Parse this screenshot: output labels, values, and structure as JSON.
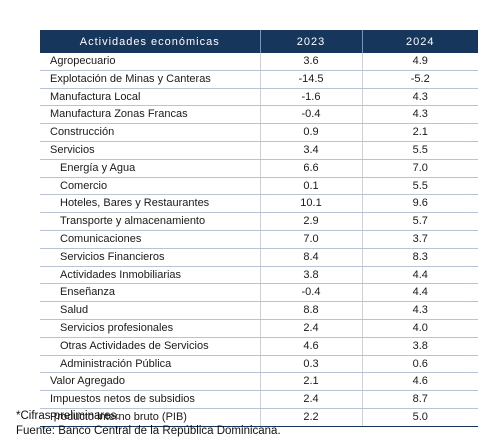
{
  "table": {
    "headers": [
      "Actividades económicas",
      "2023",
      "2024"
    ],
    "rows": [
      {
        "label": "Agropecuario",
        "y2023": "3.6",
        "y2024": "4.9",
        "sub": false
      },
      {
        "label": "Explotación de Minas y Canteras",
        "y2023": "-14.5",
        "y2024": "-5.2",
        "sub": false
      },
      {
        "label": "Manufactura Local",
        "y2023": "-1.6",
        "y2024": "4.3",
        "sub": false
      },
      {
        "label": "Manufactura Zonas Francas",
        "y2023": "-0.4",
        "y2024": "4.3",
        "sub": false
      },
      {
        "label": "Construcción",
        "y2023": "0.9",
        "y2024": "2.1",
        "sub": false
      },
      {
        "label": "Servicios",
        "y2023": "3.4",
        "y2024": "5.5",
        "sub": false
      },
      {
        "label": "Energía y Agua",
        "y2023": "6.6",
        "y2024": "7.0",
        "sub": true
      },
      {
        "label": "Comercio",
        "y2023": "0.1",
        "y2024": "5.5",
        "sub": true
      },
      {
        "label": "Hoteles, Bares y Restaurantes",
        "y2023": "10.1",
        "y2024": "9.6",
        "sub": true
      },
      {
        "label": "Transporte y almacenamiento",
        "y2023": "2.9",
        "y2024": "5.7",
        "sub": true
      },
      {
        "label": "Comunicaciones",
        "y2023": "7.0",
        "y2024": "3.7",
        "sub": true
      },
      {
        "label": "Servicios Financieros",
        "y2023": "8.4",
        "y2024": "8.3",
        "sub": true
      },
      {
        "label": "Actividades Inmobiliarias",
        "y2023": "3.8",
        "y2024": "4.4",
        "sub": true
      },
      {
        "label": "Enseñanza",
        "y2023": "-0.4",
        "y2024": "4.4",
        "sub": true
      },
      {
        "label": "Salud",
        "y2023": "8.8",
        "y2024": "4.3",
        "sub": true
      },
      {
        "label": "Servicios profesionales",
        "y2023": "2.4",
        "y2024": "4.0",
        "sub": true
      },
      {
        "label": "Otras Actividades de Servicios",
        "y2023": "4.6",
        "y2024": "3.8",
        "sub": true
      },
      {
        "label": "Administración Pública",
        "y2023": "0.3",
        "y2024": "0.6",
        "sub": true
      },
      {
        "label": "Valor Agregado",
        "y2023": "2.1",
        "y2024": "4.6",
        "sub": false
      },
      {
        "label": "Impuestos netos de subsidios",
        "y2023": "2.4",
        "y2024": "8.7",
        "sub": false
      },
      {
        "label": "Producto interno bruto (PIB)",
        "y2023": "2.2",
        "y2024": "5.0",
        "sub": false
      }
    ]
  },
  "notes": {
    "preliminary": "*Cifras preliminares.",
    "source": "Fuente: Banco Central de la República Dominicana."
  },
  "colors": {
    "header_bg": "#16365c",
    "header_text": "#ffffff"
  }
}
